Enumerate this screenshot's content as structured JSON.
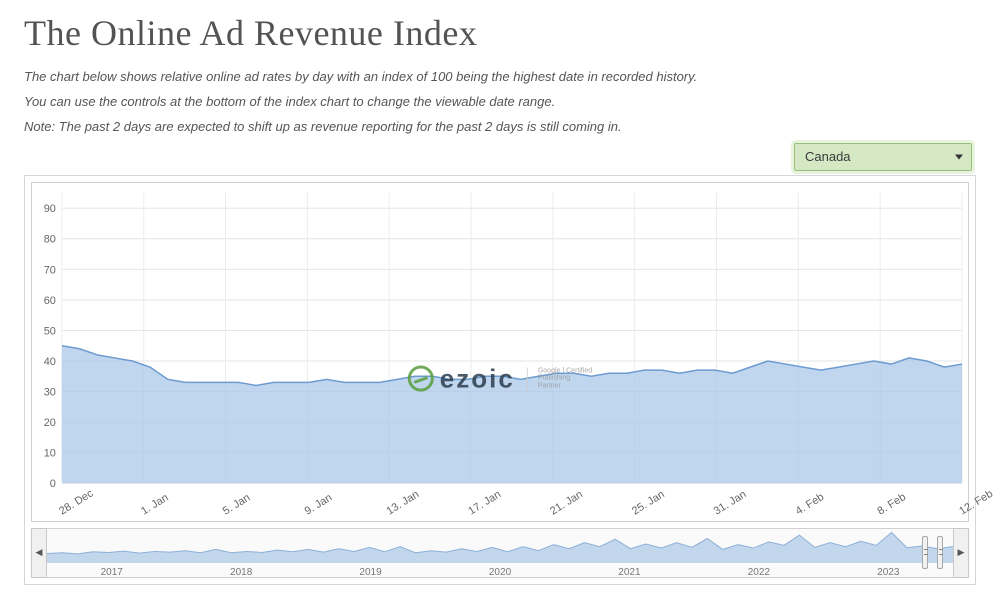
{
  "title": "The Online Ad Revenue Index",
  "description": [
    "The chart below shows relative online ad rates by day with an index of 100 being the highest date in recorded history.",
    "You can use the controls at the bottom of the index chart to change the viewable date range.",
    "Note: The past 2 days are expected to shift up as revenue reporting for the past 2 days is still coming in."
  ],
  "country_selector": {
    "selected": "Canada"
  },
  "watermark": {
    "brand": "ezoic",
    "badge_lines": [
      "Google | Certified",
      "Publishing",
      "Partner"
    ]
  },
  "main_chart": {
    "type": "area",
    "ylim": [
      0,
      95
    ],
    "yticks": [
      0,
      10,
      20,
      30,
      40,
      50,
      60,
      70,
      80,
      90
    ],
    "x_labels": [
      "28. Dec",
      "1. Jan",
      "5. Jan",
      "9. Jan",
      "13. Jan",
      "17. Jan",
      "21. Jan",
      "25. Jan",
      "31. Jan",
      "4. Feb",
      "8. Feb",
      "12. Feb"
    ],
    "values": [
      45,
      44,
      42,
      41,
      40,
      38,
      34,
      33,
      33,
      33,
      33,
      32,
      33,
      33,
      33,
      34,
      33,
      33,
      33,
      34,
      35,
      35,
      34,
      34,
      35,
      35,
      34,
      35,
      36,
      36,
      35,
      36,
      36,
      37,
      37,
      36,
      37,
      37,
      36,
      38,
      40,
      39,
      38,
      37,
      38,
      39,
      40,
      39,
      41,
      40,
      38,
      39
    ],
    "line_color": "#6d9bd1",
    "fill_color": "#a9c8e8",
    "fill_opacity": 0.75,
    "grid_color": "#e5e5e5",
    "background_color": "#ffffff",
    "tick_fontsize": 11,
    "tick_color": "#666666"
  },
  "navigator": {
    "year_labels": [
      "2017",
      "2018",
      "2019",
      "2020",
      "2021",
      "2022",
      "2023"
    ],
    "ylim": [
      0,
      100
    ],
    "values": [
      28,
      30,
      27,
      33,
      31,
      35,
      29,
      34,
      32,
      36,
      30,
      40,
      30,
      34,
      31,
      38,
      33,
      40,
      32,
      42,
      34,
      46,
      33,
      48,
      30,
      36,
      32,
      42,
      34,
      46,
      33,
      48,
      36,
      54,
      42,
      60,
      48,
      70,
      42,
      56,
      44,
      60,
      46,
      72,
      40,
      54,
      44,
      62,
      52,
      82,
      46,
      60,
      48,
      64,
      52,
      90,
      45,
      50,
      42,
      48
    ],
    "fill_color": "#c3d7ec",
    "line_color": "#8bb0d8",
    "selection_start_pct": 96.4,
    "selection_end_pct": 98.0,
    "tick_fontsize": 10,
    "tick_color": "#777777",
    "button_bg": "#f0f0f0",
    "button_border": "#c8c8c8"
  },
  "colors": {
    "page_bg": "#ffffff",
    "title_color": "#535353",
    "desc_color": "#555555",
    "select_bg": "#d4e8c4",
    "select_border": "#9abf7d",
    "select_glow": "#e7f3dc",
    "chart_border": "#cfcfcf",
    "outer_border": "#d7d7d7"
  }
}
